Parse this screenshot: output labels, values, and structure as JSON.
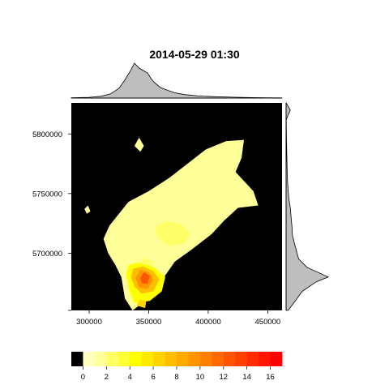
{
  "chart_data": {
    "type": "heatmap",
    "title": "2014-05-29 01:30",
    "xlabel": "",
    "ylabel": "",
    "xlim": [
      285000,
      462000
    ],
    "ylim": [
      5652000,
      5826000
    ],
    "x_ticks": [
      300000,
      350000,
      400000,
      450000
    ],
    "x_tick_labels": [
      "300000",
      "350000",
      "400000",
      "450000"
    ],
    "y_ticks": [
      5700000,
      5750000,
      5800000
    ],
    "y_tick_labels": [
      "5700000",
      "5750000",
      "5800000"
    ],
    "background_color": "#000000",
    "marginal_fill": "#bebebe",
    "colorbar": {
      "range": [
        -1,
        17
      ],
      "ticks": [
        0,
        2,
        4,
        6,
        8,
        10,
        12,
        14,
        16
      ],
      "tick_labels": [
        "0",
        "2",
        "4",
        "6",
        "8",
        "10",
        "12",
        "14",
        "16"
      ],
      "colors": [
        "#000000",
        "#FFFFBF",
        "#FFFF99",
        "#FFFF66",
        "#FFFF33",
        "#FFFF00",
        "#FFEA00",
        "#FFD400",
        "#FFBF00",
        "#FFAA00",
        "#FF9400",
        "#FF7F00",
        "#FF6A00",
        "#FF5500",
        "#FF3F00",
        "#FF2A00",
        "#FF1500",
        "#FF0000"
      ]
    },
    "regions": [
      {
        "level": 1,
        "color": "#FFFF99",
        "polygon": [
          [
            336500,
            5652000
          ],
          [
            330000,
            5662000
          ],
          [
            327000,
            5680000
          ],
          [
            322000,
            5690000
          ],
          [
            316000,
            5700000
          ],
          [
            312000,
            5712000
          ],
          [
            317000,
            5723000
          ],
          [
            325000,
            5733000
          ],
          [
            333000,
            5743000
          ],
          [
            350000,
            5752000
          ],
          [
            367000,
            5763000
          ],
          [
            380000,
            5773000
          ],
          [
            398000,
            5787000
          ],
          [
            415000,
            5794000
          ],
          [
            430000,
            5795000
          ],
          [
            428000,
            5780000
          ],
          [
            423000,
            5768000
          ],
          [
            438000,
            5752000
          ],
          [
            442000,
            5740000
          ],
          [
            425000,
            5738000
          ],
          [
            413000,
            5727000
          ],
          [
            403000,
            5716000
          ],
          [
            386000,
            5703000
          ],
          [
            372000,
            5693000
          ],
          [
            363000,
            5680000
          ],
          [
            355000,
            5672000
          ],
          [
            350000,
            5662000
          ]
        ]
      },
      {
        "level": 1,
        "color": "#FFFF99",
        "polygon": [
          [
            338000,
            5790000
          ],
          [
            342000,
            5797000
          ],
          [
            346000,
            5790000
          ],
          [
            343000,
            5785000
          ]
        ]
      },
      {
        "level": 1,
        "color": "#FFFF99",
        "polygon": [
          [
            296000,
            5737000
          ],
          [
            299000,
            5740000
          ],
          [
            301000,
            5735000
          ],
          [
            298000,
            5733000
          ]
        ]
      },
      {
        "level": 3,
        "color": "#FFFF66",
        "polygon": [
          [
            355000,
            5722000
          ],
          [
            365000,
            5727000
          ],
          [
            378000,
            5724000
          ],
          [
            385000,
            5716000
          ],
          [
            380000,
            5708000
          ],
          [
            368000,
            5706000
          ],
          [
            358000,
            5712000
          ]
        ]
      },
      {
        "level": 3,
        "color": "#FFFF66",
        "polygon": [
          [
            340000,
            5690000
          ],
          [
            346000,
            5696000
          ],
          [
            354000,
            5693000
          ],
          [
            352000,
            5684000
          ],
          [
            344000,
            5682000
          ]
        ]
      },
      {
        "level": 5,
        "color": "#FFFF00",
        "polygon": [
          [
            331000,
            5682000
          ],
          [
            333000,
            5690000
          ],
          [
            341000,
            5692000
          ],
          [
            355000,
            5688000
          ],
          [
            364000,
            5680000
          ],
          [
            361000,
            5668000
          ],
          [
            351000,
            5660000
          ],
          [
            338000,
            5658000
          ],
          [
            334000,
            5668000
          ]
        ]
      },
      {
        "level": 8,
        "color": "#FFBF00",
        "polygon": [
          [
            335000,
            5680000
          ],
          [
            337000,
            5687000
          ],
          [
            345000,
            5689000
          ],
          [
            354000,
            5685000
          ],
          [
            359000,
            5678000
          ],
          [
            354000,
            5668000
          ],
          [
            344000,
            5666000
          ],
          [
            338000,
            5672000
          ]
        ]
      },
      {
        "level": 10,
        "color": "#FF9400",
        "polygon": [
          [
            339000,
            5679000
          ],
          [
            343000,
            5686000
          ],
          [
            350000,
            5684000
          ],
          [
            354000,
            5678000
          ],
          [
            349000,
            5670000
          ],
          [
            342000,
            5671000
          ]
        ]
      },
      {
        "level": 13,
        "color": "#FF5500",
        "polygon": [
          [
            343000,
            5679000
          ],
          [
            346000,
            5684000
          ],
          [
            351000,
            5681000
          ],
          [
            349000,
            5674000
          ],
          [
            344000,
            5675000
          ]
        ]
      },
      {
        "level": 7,
        "color": "#FFD400",
        "polygon": [
          [
            340000,
            5656000
          ],
          [
            342000,
            5661000
          ],
          [
            348000,
            5660000
          ],
          [
            347000,
            5654000
          ]
        ]
      }
    ],
    "top_marginal": {
      "x": [
        285000,
        300000,
        310000,
        318000,
        325000,
        330000,
        335000,
        338000,
        342000,
        346000,
        349000,
        352000,
        355000,
        360000,
        366000,
        372000,
        380000,
        392000,
        405000,
        420000,
        435000,
        450000,
        462000
      ],
      "density": [
        0.01,
        0.02,
        0.05,
        0.12,
        0.28,
        0.52,
        0.8,
        1.0,
        0.86,
        0.78,
        0.72,
        0.56,
        0.44,
        0.3,
        0.22,
        0.15,
        0.1,
        0.06,
        0.04,
        0.025,
        0.015,
        0.008,
        0.005
      ]
    },
    "right_marginal": {
      "y": [
        5652000,
        5660000,
        5668000,
        5676000,
        5680000,
        5688000,
        5695000,
        5700000,
        5708000,
        5715000,
        5722000,
        5730000,
        5738000,
        5745000,
        5752000,
        5760000,
        5770000,
        5785000,
        5800000,
        5812000,
        5820000,
        5826000
      ],
      "density": [
        0.05,
        0.22,
        0.38,
        0.72,
        1.0,
        0.5,
        0.3,
        0.26,
        0.2,
        0.15,
        0.14,
        0.12,
        0.1,
        0.07,
        0.05,
        0.035,
        0.025,
        0.015,
        0.008,
        0.004,
        0.1,
        0.002
      ]
    }
  }
}
